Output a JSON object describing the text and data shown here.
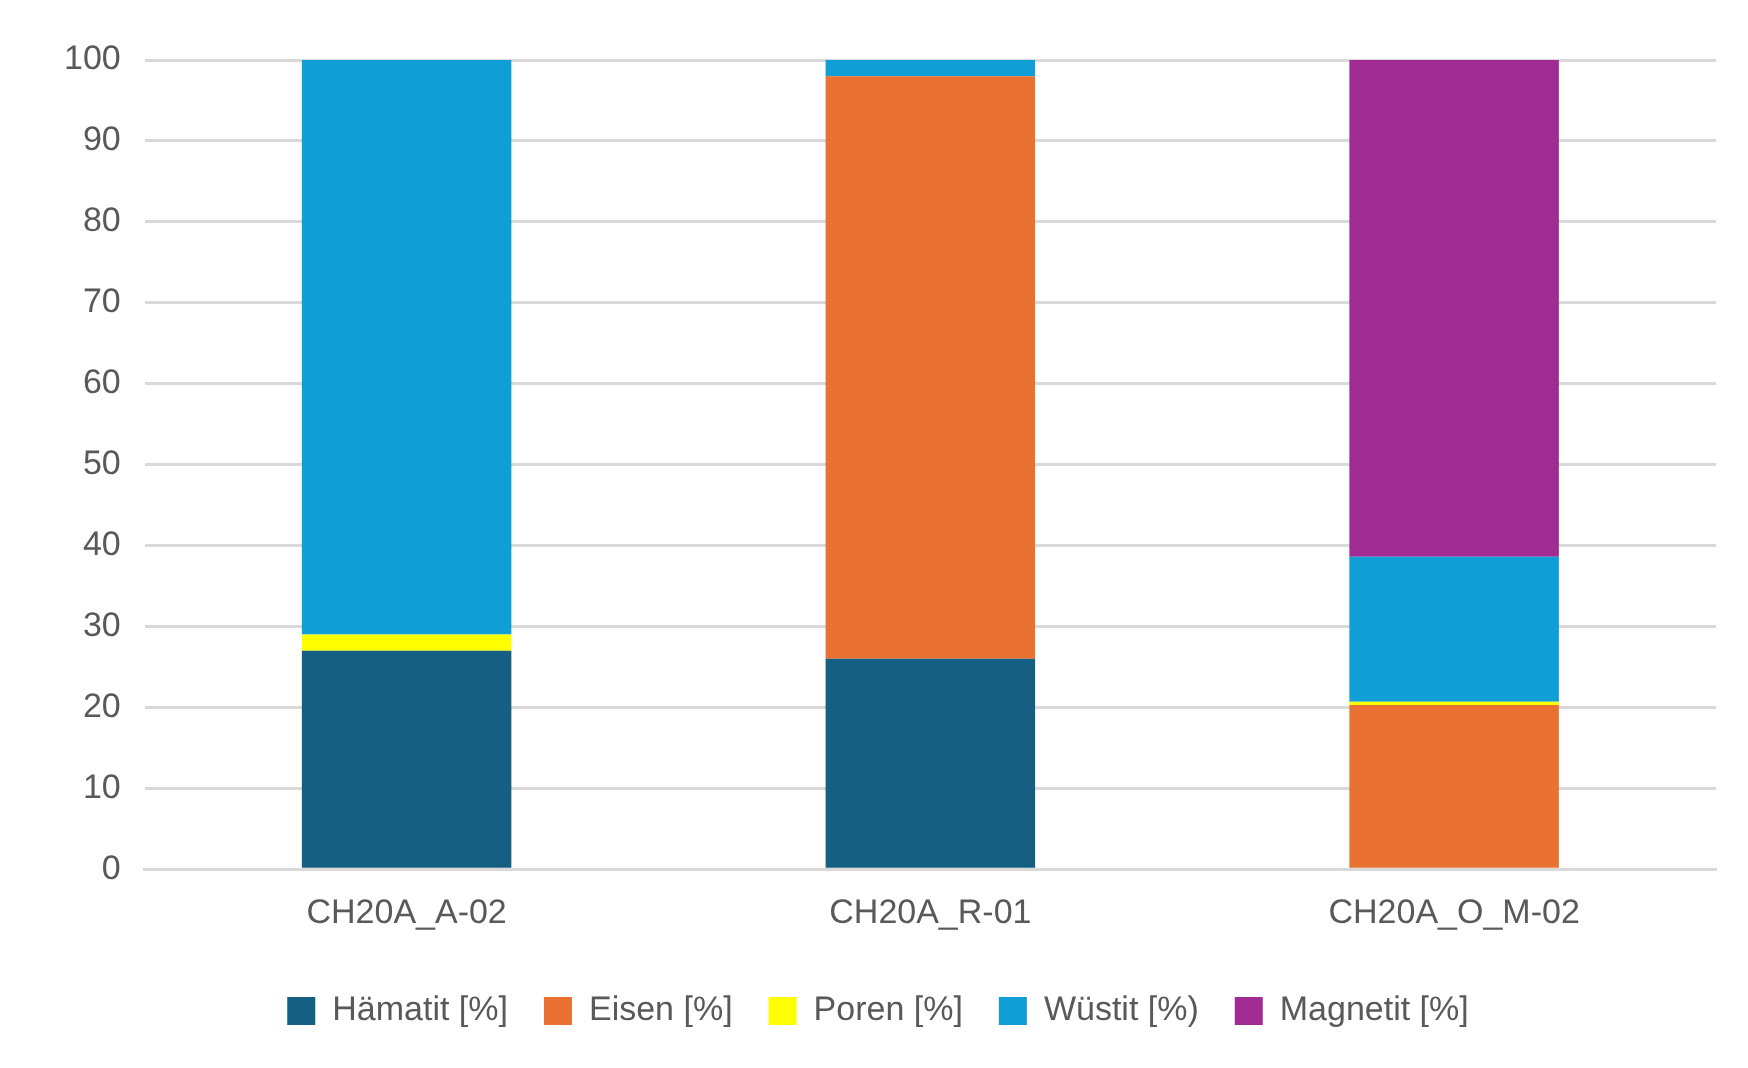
{
  "chart_data": {
    "type": "bar",
    "stacked": true,
    "categories": [
      "CH20A_A-02",
      "CH20A_R-01",
      "CH20A_O_M-02"
    ],
    "series": [
      {
        "name": "Hämatit [%]",
        "color": "#156082",
        "values": [
          27,
          26,
          null
        ]
      },
      {
        "name": "Eisen [%]",
        "color": "#e97132",
        "values": [
          null,
          72,
          20.3
        ]
      },
      {
        "name": "Poren [%]",
        "color": "#ffff00",
        "values": [
          2,
          null,
          0.4
        ]
      },
      {
        "name": "Wüstit [%)",
        "color": "#0f9ed5",
        "values": [
          71,
          2,
          17.9
        ]
      },
      {
        "name": "Magnetit [%]",
        "color": "#a02b93",
        "values": [
          null,
          null,
          61.4
        ]
      }
    ],
    "ylim": [
      0,
      100
    ],
    "yticks": [
      0,
      10,
      20,
      30,
      40,
      50,
      60,
      70,
      80,
      90,
      100
    ],
    "grid": "y",
    "legend": "bottom"
  }
}
